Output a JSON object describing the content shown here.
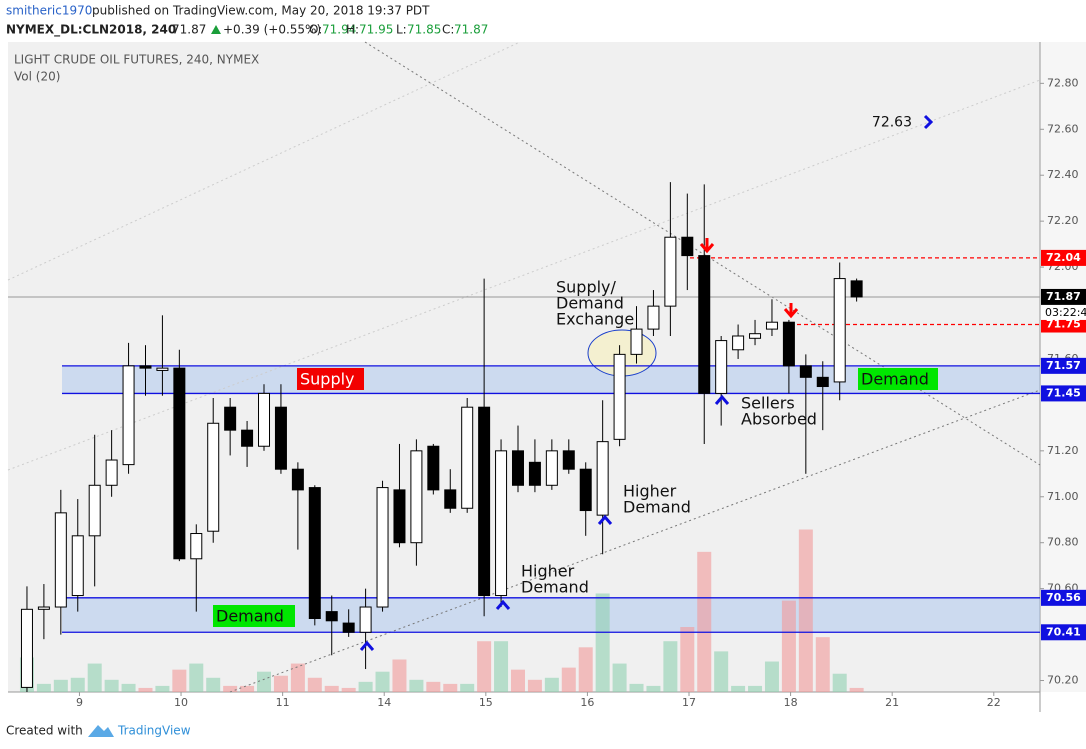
{
  "header": {
    "author": "smitheric1970",
    "published": "published on TradingView.com, May 20, 2018 19:37 PDT",
    "symbol": "NYMEX_DL:CLN2018, 240",
    "last": "71.87",
    "change": "+0.39 (+0.55%)",
    "ohlc": [
      [
        "O:",
        "71.94"
      ],
      [
        "H:",
        "71.95"
      ],
      [
        "L:",
        "71.85"
      ],
      [
        "C:",
        "71.87"
      ]
    ]
  },
  "footer": {
    "created": "Created with",
    "brand": "TradingView"
  },
  "chart_data": {
    "type": "candlestick",
    "title": "LIGHT CRUDE OIL FUTURES, 240, NYMEX",
    "subtitle": "Vol (20)",
    "x": [
      0,
      1,
      2,
      3,
      4,
      5,
      6,
      7,
      8,
      9,
      10,
      11,
      12,
      13,
      14,
      15,
      16,
      17,
      18,
      19,
      20,
      21,
      22,
      23,
      24,
      25,
      26,
      27,
      28,
      29,
      30,
      31,
      32,
      33,
      34,
      35,
      36,
      37,
      38,
      39,
      40,
      41,
      42,
      43,
      44,
      45,
      46,
      47,
      48,
      49
    ],
    "open": [
      70.17,
      70.51,
      70.52,
      70.57,
      70.83,
      71.05,
      71.14,
      71.57,
      71.55,
      71.56,
      70.73,
      70.85,
      71.39,
      71.29,
      71.22,
      71.39,
      71.12,
      71.04,
      70.5,
      70.45,
      70.41,
      70.52,
      71.03,
      70.8,
      71.22,
      71.03,
      70.95,
      71.39,
      70.57,
      71.2,
      71.15,
      71.05,
      71.2,
      71.12,
      70.92,
      71.25,
      71.62,
      71.73,
      71.83,
      72.13,
      72.05,
      71.45,
      71.64,
      71.69,
      71.73,
      71.76,
      71.57,
      71.52,
      71.5,
      71.94
    ],
    "high": [
      70.61,
      70.62,
      71.03,
      70.99,
      71.27,
      71.29,
      71.67,
      71.66,
      71.79,
      71.64,
      70.88,
      71.43,
      71.43,
      71.33,
      71.49,
      71.49,
      71.15,
      71.05,
      70.57,
      70.51,
      70.6,
      71.07,
      71.23,
      71.25,
      71.23,
      71.12,
      71.43,
      71.95,
      71.25,
      71.31,
      71.25,
      71.25,
      71.25,
      71.15,
      71.42,
      71.66,
      71.83,
      71.9,
      72.37,
      72.32,
      72.36,
      71.7,
      71.75,
      71.77,
      71.86,
      71.77,
      71.62,
      71.59,
      72.02,
      71.95
    ],
    "low": [
      70.15,
      70.38,
      70.4,
      70.5,
      70.61,
      71.0,
      71.1,
      71.44,
      71.44,
      70.72,
      70.5,
      70.8,
      71.18,
      71.13,
      71.2,
      71.1,
      70.77,
      70.44,
      70.31,
      70.39,
      70.25,
      70.5,
      70.78,
      70.7,
      71.01,
      70.93,
      70.93,
      70.48,
      70.52,
      71.02,
      71.02,
      71.03,
      71.1,
      70.83,
      70.75,
      71.22,
      71.58,
      71.7,
      71.7,
      71.9,
      71.23,
      71.31,
      71.6,
      71.66,
      71.7,
      71.45,
      71.1,
      71.29,
      71.42,
      71.85
    ],
    "close": [
      70.51,
      70.52,
      70.93,
      70.83,
      71.05,
      71.16,
      71.57,
      71.56,
      71.56,
      70.73,
      70.84,
      71.32,
      71.29,
      71.22,
      71.45,
      71.12,
      71.03,
      70.47,
      70.46,
      70.41,
      70.52,
      71.04,
      70.8,
      71.2,
      71.03,
      70.95,
      71.39,
      70.57,
      71.2,
      71.05,
      71.05,
      71.2,
      71.12,
      70.94,
      71.24,
      71.62,
      71.73,
      71.83,
      72.13,
      72.05,
      71.45,
      71.68,
      71.7,
      71.71,
      71.76,
      71.57,
      71.52,
      71.48,
      71.95,
      71.87
    ],
    "volume": [
      34,
      8,
      12,
      14,
      28,
      12,
      8,
      4,
      6,
      22,
      28,
      14,
      6,
      6,
      20,
      16,
      28,
      14,
      6,
      4,
      10,
      20,
      32,
      12,
      10,
      8,
      8,
      50,
      50,
      22,
      12,
      14,
      24,
      44,
      97,
      28,
      8,
      6,
      50,
      64,
      138,
      40,
      6,
      6,
      30,
      90,
      160,
      54,
      18,
      4
    ],
    "vlim": [
      0,
      640
    ],
    "up_color": "#ffffff",
    "down_color": "#000000",
    "volume_up_color": "#8fd1b0",
    "volume_down_color": "#f29a9a",
    "xlim": [
      -1.12,
      59.83
    ],
    "xticks": [
      {
        "value": 3.1,
        "label": "9"
      },
      {
        "value": 9.1,
        "label": "10"
      },
      {
        "value": 15.1,
        "label": "11"
      },
      {
        "value": 21.1,
        "label": "14"
      },
      {
        "value": 27.1,
        "label": "15"
      },
      {
        "value": 33.1,
        "label": "16"
      },
      {
        "value": 39.1,
        "label": "17"
      },
      {
        "value": 45.1,
        "label": "18"
      },
      {
        "value": 51.1,
        "label": "21"
      },
      {
        "value": 57.1,
        "label": "22"
      }
    ],
    "ylim": [
      70.15,
      72.98
    ],
    "yticks": [
      {
        "value": 70.2,
        "label": "70.20"
      },
      {
        "value": 70.6,
        "label": "70.60"
      },
      {
        "value": 70.8,
        "label": "70.80"
      },
      {
        "value": 71.0,
        "label": "71.00"
      },
      {
        "value": 71.2,
        "label": "71.20"
      },
      {
        "value": 71.6,
        "label": "71.60"
      },
      {
        "value": 72.0,
        "label": "72.00"
      },
      {
        "value": 72.2,
        "label": "72.20"
      },
      {
        "value": 72.4,
        "label": "72.40"
      },
      {
        "value": 72.6,
        "label": "72.60"
      },
      {
        "value": 72.8,
        "label": "72.80"
      }
    ],
    "zones": [
      {
        "low": 71.45,
        "high": 71.57,
        "labels": [
          "Supply",
          "Demand"
        ]
      },
      {
        "low": 70.41,
        "high": 70.56,
        "labels": [
          "Demand"
        ]
      }
    ],
    "levels": [
      {
        "value": 72.04,
        "color": "#ff0000"
      },
      {
        "value": 71.75,
        "color": "#ff0000"
      }
    ],
    "last_price": 71.87,
    "countdown": "03:22:4",
    "target": 72.63,
    "annotations": [
      [
        "Supply/",
        "Demand",
        "Exchange"
      ],
      [
        "Higher",
        "Demand"
      ],
      [
        "Higher",
        "Demand"
      ],
      [
        "Sellers",
        "Absorbed"
      ]
    ]
  }
}
